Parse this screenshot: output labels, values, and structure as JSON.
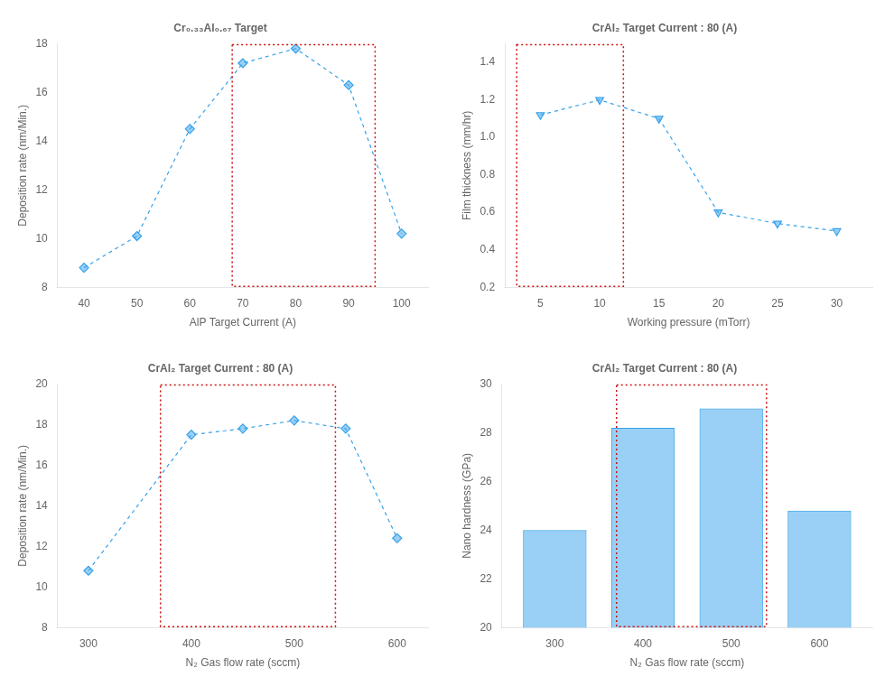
{
  "chart_data": [
    {
      "type": "line",
      "title": "Cr₀.₃₃Al₀.₆₇ Target",
      "xlabel": "AlP Target Current (A)",
      "ylabel": "Deposition rate (nm/Min.)",
      "x": [
        40,
        50,
        60,
        70,
        80,
        90,
        100
      ],
      "values": [
        8.8,
        10.1,
        14.5,
        17.2,
        17.8,
        16.3,
        10.2
      ],
      "xlim": [
        35,
        105
      ],
      "ylim": [
        8,
        18
      ],
      "xticks": [
        40,
        50,
        60,
        70,
        80,
        90,
        100
      ],
      "yticks": [
        8,
        10,
        12,
        14,
        16,
        18
      ],
      "marker": "diamond",
      "line_style": "dashed",
      "grid": false,
      "highlight": {
        "x": [
          68,
          95
        ],
        "color": "#cc1111"
      }
    },
    {
      "type": "line",
      "title": "CrAl₂ Target Current : 80 (A)",
      "xlabel": "Working pressure (mTorr)",
      "ylabel": "Film thickness (mm/hr)",
      "x": [
        5,
        10,
        15,
        20,
        25,
        30
      ],
      "values": [
        1.12,
        1.2,
        1.1,
        0.6,
        0.54,
        0.5
      ],
      "xlim": [
        2,
        33
      ],
      "ylim": [
        0.2,
        1.5
      ],
      "xticks": [
        5,
        10,
        15,
        20,
        25,
        30
      ],
      "yticks": [
        0.2,
        0.4,
        0.6,
        0.8,
        {
          "value": 1.0,
          "label": "1.0"
        },
        1.2,
        1.4
      ],
      "marker": "triangle_down",
      "line_style": "dashed",
      "grid": false,
      "highlight": {
        "x": [
          3,
          12
        ],
        "color": "#cc1111"
      }
    },
    {
      "type": "line",
      "title": "CrAl₂ Target Current : 80 (A)",
      "xlabel": "N₂ Gas flow rate (sccm)",
      "ylabel": "Deposition rate (nm/Min.)",
      "x": [
        300,
        400,
        450,
        500,
        550,
        600
      ],
      "values": [
        10.8,
        17.5,
        17.8,
        18.2,
        17.8,
        12.4
      ],
      "xlim": [
        270,
        630
      ],
      "ylim": [
        8,
        20
      ],
      "xticks": [
        300,
        400,
        500,
        600
      ],
      "yticks": [
        8,
        10,
        12,
        14,
        16,
        18,
        20
      ],
      "marker": "diamond",
      "line_style": "dashed",
      "grid": false,
      "highlight": {
        "x": [
          370,
          540
        ],
        "color": "#cc1111"
      }
    },
    {
      "type": "bar",
      "title": "CrAl₂ Target Current : 80 (A)",
      "xlabel": "N₂ Gas flow rate (sccm)",
      "ylabel": "Nano hardness (GPa)",
      "x": [
        300,
        400,
        500,
        600
      ],
      "values": [
        24.0,
        28.2,
        29.0,
        24.8
      ],
      "xlim": [
        240,
        660
      ],
      "ylim": [
        20,
        30
      ],
      "xticks": [
        300,
        400,
        500,
        600
      ],
      "yticks": [
        20,
        22,
        24,
        26,
        28,
        30
      ],
      "grid": false,
      "highlight": {
        "x": [
          370,
          540
        ],
        "color": "#cc1111"
      }
    }
  ]
}
